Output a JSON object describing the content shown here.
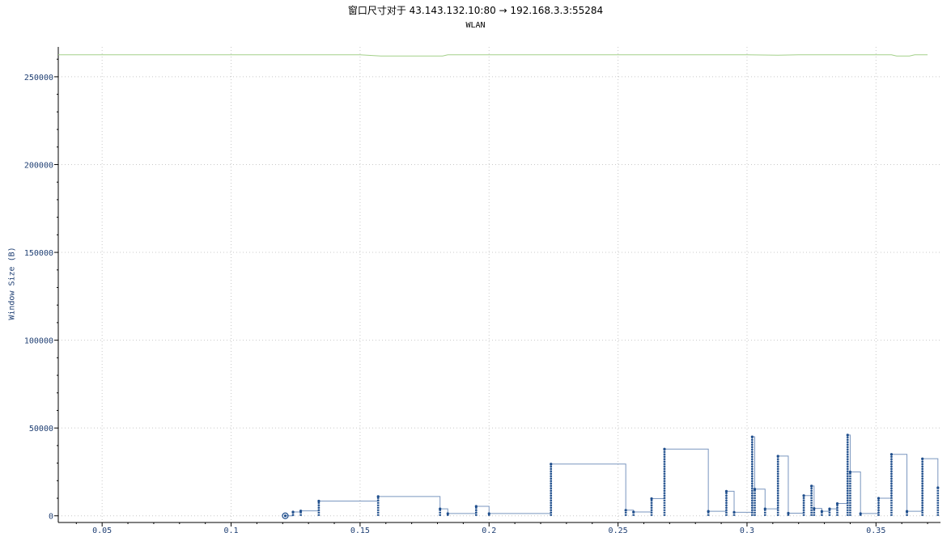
{
  "header": {
    "title": "窗口尺寸对于 43.143.132.10:80 → 192.168.3.3:55284",
    "subtitle": "WLAN"
  },
  "colors": {
    "window_series": "#1f4e8c",
    "window_line": "#7a96bf",
    "rcv_window": "#a3d08a",
    "axis": "#1f3f73",
    "grid": "#c8c8c8"
  },
  "chart_data": {
    "type": "line",
    "title": "窗口尺寸对于 43.143.132.10:80 → 192.168.3.3:55284",
    "subtitle": "WLAN",
    "xlabel": "",
    "ylabel": "Window Size (B)",
    "xlim": [
      0.033,
      0.375
    ],
    "ylim": [
      -3800,
      267000
    ],
    "grid": true,
    "x_ticks": [
      0.05,
      0.1,
      0.15,
      0.2,
      0.25,
      0.3,
      0.35
    ],
    "x_tick_labels": [
      "0.05",
      "0.1",
      "0.15",
      "0.2",
      "0.25",
      "0.3",
      "0.35"
    ],
    "y_ticks": [
      0,
      50000,
      100000,
      150000,
      200000,
      250000
    ],
    "y_tick_labels": [
      "0",
      "50000",
      "100000",
      "150000",
      "200000",
      "250000"
    ],
    "series": [
      {
        "style": "step-line",
        "points": [
          [
            0.033,
            262500
          ],
          [
            0.15,
            262500
          ],
          [
            0.158,
            261800
          ],
          [
            0.182,
            261800
          ],
          [
            0.184,
            262500
          ],
          [
            0.3,
            262500
          ],
          [
            0.312,
            262300
          ],
          [
            0.32,
            262500
          ],
          [
            0.356,
            262500
          ],
          [
            0.358,
            261800
          ],
          [
            0.363,
            261800
          ],
          [
            0.365,
            262500
          ],
          [
            0.37,
            262500
          ]
        ]
      },
      {
        "style": "step-with-markers",
        "points": [
          [
            0.121,
            0
          ],
          [
            0.124,
            2200
          ],
          [
            0.127,
            2800
          ],
          [
            0.134,
            8400
          ],
          [
            0.157,
            11000
          ],
          [
            0.181,
            4000
          ],
          [
            0.184,
            1300
          ],
          [
            0.195,
            5400
          ],
          [
            0.2,
            1300
          ],
          [
            0.224,
            29500
          ],
          [
            0.253,
            3200
          ],
          [
            0.256,
            2200
          ],
          [
            0.263,
            9800
          ],
          [
            0.268,
            38000
          ],
          [
            0.285,
            2600
          ],
          [
            0.292,
            14000
          ],
          [
            0.295,
            2000
          ],
          [
            0.302,
            45000
          ],
          [
            0.303,
            15200
          ],
          [
            0.307,
            4000
          ],
          [
            0.312,
            34000
          ],
          [
            0.316,
            1500
          ],
          [
            0.322,
            11500
          ],
          [
            0.325,
            17000
          ],
          [
            0.326,
            4200
          ],
          [
            0.329,
            2600
          ],
          [
            0.332,
            4000
          ],
          [
            0.335,
            7000
          ],
          [
            0.339,
            46000
          ],
          [
            0.34,
            25000
          ],
          [
            0.344,
            1300
          ],
          [
            0.351,
            10000
          ],
          [
            0.356,
            35000
          ],
          [
            0.362,
            2600
          ],
          [
            0.368,
            32500
          ],
          [
            0.374,
            16000
          ]
        ]
      }
    ],
    "start_marker": [
      0.121,
      0
    ]
  }
}
